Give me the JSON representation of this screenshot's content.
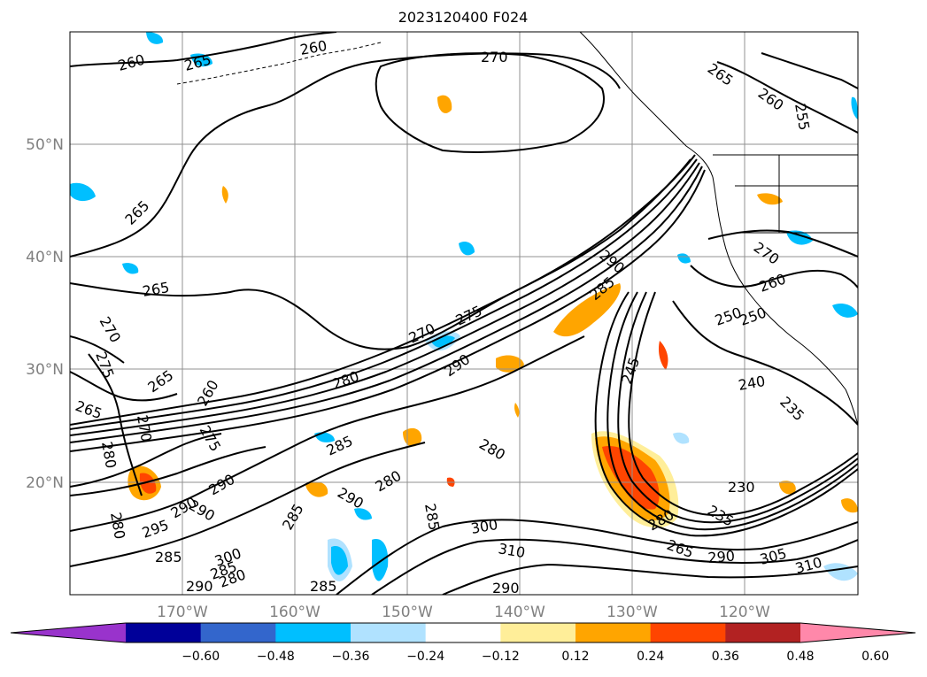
{
  "title": "2023120400 F024",
  "lat_labels": [
    "50°N",
    "40°N",
    "30°N",
    "20°N"
  ],
  "lon_labels": [
    "170°W",
    "160°W",
    "150°W",
    "140°W",
    "130°W",
    "120°W"
  ],
  "colorbar": {
    "tick_labels": [
      "−0.60",
      "−0.48",
      "−0.36",
      "−0.24",
      "−0.12",
      "0.12",
      "0.24",
      "0.36",
      "0.48",
      "0.60"
    ],
    "colors": [
      "#9933cc",
      "#000099",
      "#3366cc",
      "#00bfff",
      "#b0e2ff",
      "#ffffff",
      "#ffee99",
      "#ffa500",
      "#ff4500",
      "#b22222",
      "#ff88aa"
    ]
  },
  "contour_labels": [
    "260",
    "265",
    "260",
    "270",
    "265",
    "260",
    "255",
    "265",
    "265",
    "270",
    "290",
    "285",
    "275",
    "270",
    "260",
    "250",
    "250",
    "245",
    "240",
    "235",
    "230",
    "235",
    "280",
    "265",
    "290",
    "305",
    "310",
    "310",
    "300",
    "285",
    "290",
    "280",
    "280",
    "285",
    "290",
    "290",
    "295",
    "275",
    "270",
    "260",
    "265",
    "265",
    "270",
    "275",
    "280",
    "290",
    "285",
    "290",
    "280",
    "280",
    "285",
    "290",
    "300",
    "285",
    "285",
    "280",
    "290"
  ],
  "colors": {
    "land_border": "#000000",
    "grid": "#909090",
    "contour": "#000000"
  }
}
